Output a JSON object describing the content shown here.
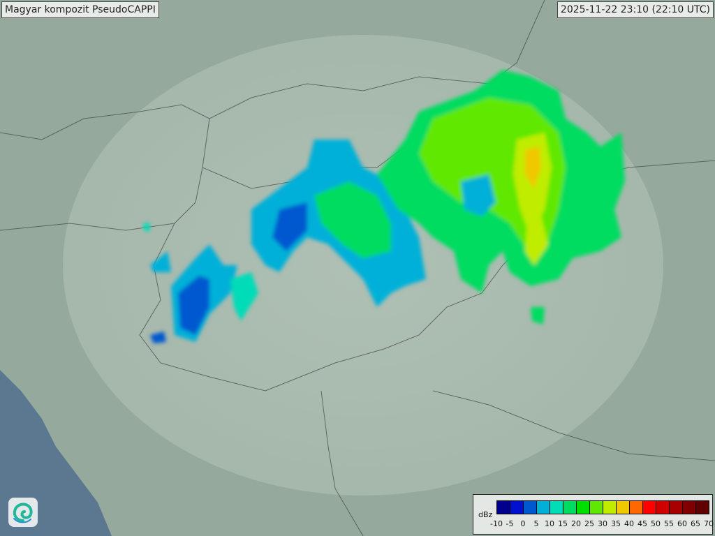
{
  "header": {
    "title": "Magyar kompozit  PseudoCAPPI",
    "timestamp": "2025-11-22 23:10 (22:10 UTC)"
  },
  "logo": {
    "icon": "swirl-logo-icon",
    "colors": [
      "#1fb89a",
      "#2a8fd0"
    ]
  },
  "map": {
    "land_color": "#98ad9f",
    "radar_coverage_color": "#c8d6cc",
    "sea_color": "#5c7890"
  },
  "legend": {
    "unit": "dBz",
    "ticks": [
      "-10",
      "-5",
      "0",
      "5",
      "10",
      "15",
      "20",
      "25",
      "30",
      "35",
      "40",
      "45",
      "50",
      "55",
      "60",
      "65",
      "70"
    ],
    "colors": [
      "#00008c",
      "#0010d0",
      "#0058d0",
      "#00b0d8",
      "#00dcb8",
      "#00dc60",
      "#00e000",
      "#60e800",
      "#c0ec00",
      "#f0c800",
      "#ff6800",
      "#ff0000",
      "#d00000",
      "#a80000",
      "#800000",
      "#600000"
    ]
  }
}
